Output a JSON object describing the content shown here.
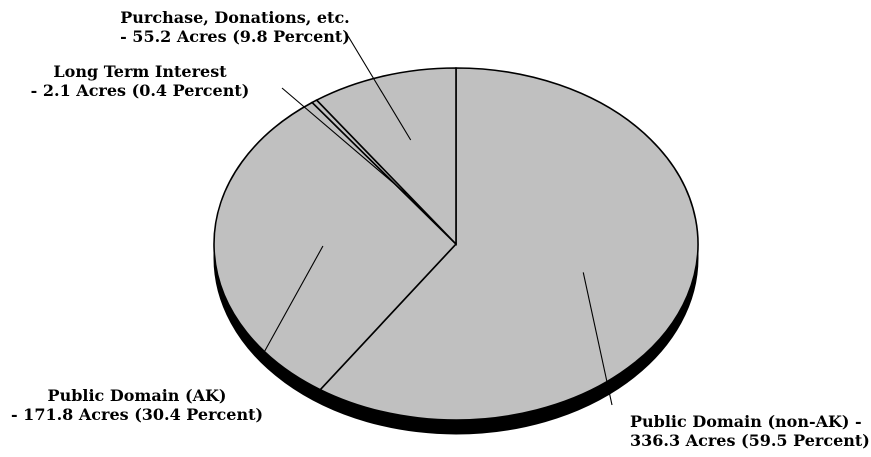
{
  "chart_data": {
    "type": "pie",
    "style": "3d-pie",
    "unit": "Acres",
    "slices": [
      {
        "key": "pd_non_ak",
        "label_line1": "Public Domain (non-AK) -",
        "label_line2": "336.3 Acres (59.5 Percent)",
        "value": 336.3,
        "percent": 59.5
      },
      {
        "key": "pd_ak",
        "label_line1": "Public Domain (AK)",
        "label_line2": "- 171.8 Acres (30.4 Percent)",
        "value": 171.8,
        "percent": 30.4
      },
      {
        "key": "long_term",
        "label_line1": "Long Term Interest",
        "label_line2": "- 2.1 Acres (0.4 Percent)",
        "value": 2.1,
        "percent": 0.4
      },
      {
        "key": "purchase",
        "label_line1": "Purchase, Donations, etc.",
        "label_line2": "- 55.2 Acres (9.8 Percent)",
        "value": 55.2,
        "percent": 9.8
      }
    ],
    "slice_color": "#c0c0c0",
    "edge_color": "#000000",
    "legend": "none"
  }
}
